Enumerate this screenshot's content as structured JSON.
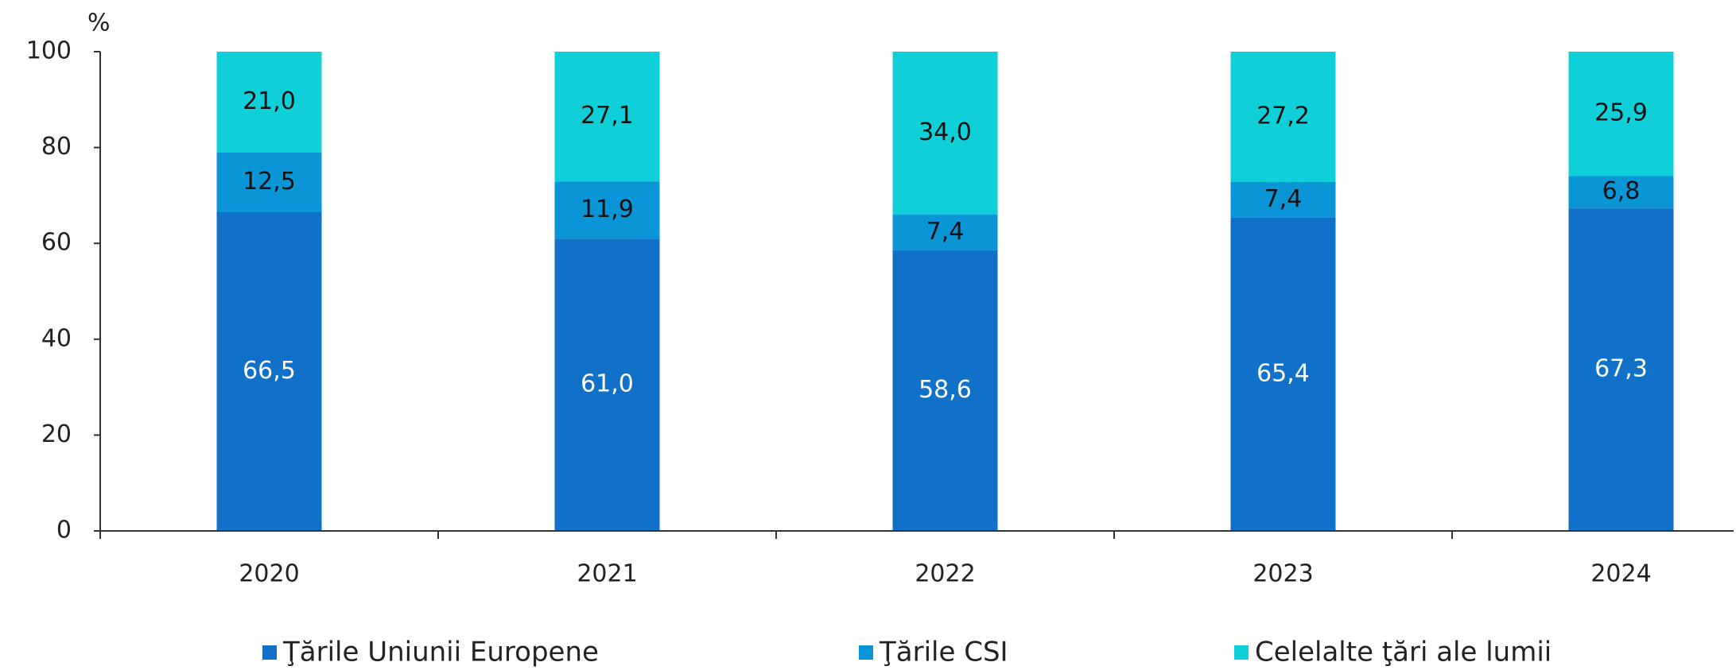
{
  "chart_data": {
    "type": "stacked_bar",
    "y_label": "%",
    "categories": [
      "2020",
      "2021",
      "2022",
      "2023",
      "2024"
    ],
    "series": [
      {
        "name": "Ţările Uniunii Europene",
        "color": "#1170c8",
        "values": [
          66.5,
          61.0,
          58.6,
          65.4,
          67.3
        ],
        "value_labels": [
          "66,5",
          "61,0",
          "58,6",
          "65,4",
          "67,3"
        ]
      },
      {
        "name": "Ţările CSI",
        "color": "#0a96d6",
        "values": [
          12.5,
          11.9,
          7.4,
          7.4,
          6.8
        ],
        "value_labels": [
          "12,5",
          "11,9",
          "7,4",
          "7,4",
          "6,8"
        ]
      },
      {
        "name": "Celelalte ţări ale lumii",
        "color": "#0fd0d8",
        "values": [
          21.0,
          27.1,
          34.0,
          27.2,
          25.9
        ],
        "value_labels": [
          "21,0",
          "27,1",
          "34,0",
          "27,2",
          "25,9"
        ]
      }
    ],
    "ylim": [
      0,
      100
    ],
    "yticks": [
      0,
      20,
      40,
      60,
      80,
      100
    ],
    "grid": false,
    "legend": "bottom"
  }
}
